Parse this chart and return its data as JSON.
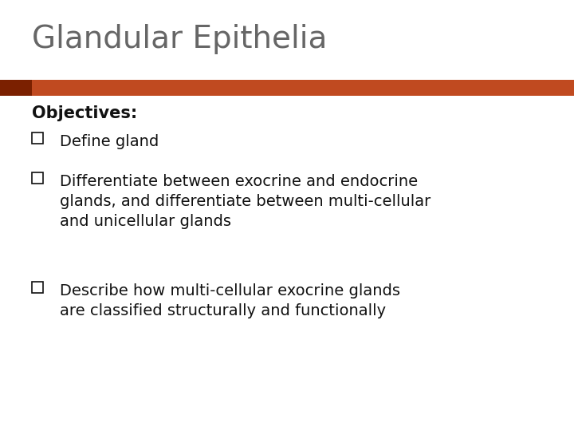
{
  "title": "Glandular Epithelia",
  "title_color": "#666666",
  "title_fontsize": 28,
  "bar_left_color": "#7B2000",
  "bar_right_color": "#C04A20",
  "objectives_label": "Objectives:",
  "objectives_fontsize": 15,
  "bullets": [
    "Define gland",
    "Differentiate between exocrine and endocrine\nglands, and differentiate between multi-cellular\nand unicellular glands",
    "Describe how multi-cellular exocrine glands\nare classified structurally and functionally"
  ],
  "bullet_fontsize": 14,
  "background_color": "#ffffff",
  "text_color": "#111111"
}
